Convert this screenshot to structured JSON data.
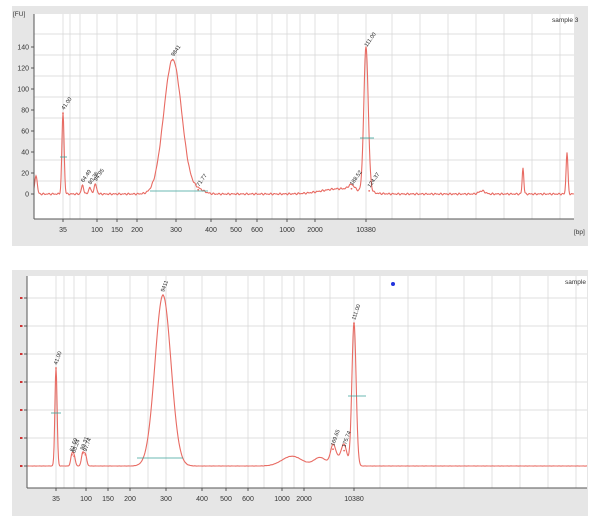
{
  "chart_data": [
    {
      "type": "line",
      "title": "sample 3",
      "ylabel": "[FU]",
      "xlabel": "[bp]",
      "ylim": [
        -10,
        145
      ],
      "y_ticks": [
        "0",
        "20",
        "40",
        "60",
        "80",
        "100",
        "120",
        "140"
      ],
      "x_ticks": [
        "35",
        "100",
        "150",
        "200",
        "300",
        "400",
        "500",
        "600",
        "1000",
        "2000",
        "10380"
      ],
      "grid": true,
      "series": [
        {
          "color": "#e86b63",
          "peaks": [
            {
              "label": "41.00",
              "size_bp": 35,
              "fu": 77,
              "color": "#3a9a3a"
            },
            {
              "label": "64.49",
              "size_bp": 64,
              "fu": 8,
              "color": "#222222"
            },
            {
              "label": "80.36",
              "size_bp": 80,
              "fu": 6,
              "color": "#222222"
            },
            {
              "label": "94.95",
              "size_bp": 95,
              "fu": 9,
              "color": "#222222"
            },
            {
              "label": "9841",
              "size_bp": 290,
              "fu": 128,
              "color": "#222222"
            },
            {
              "label": "71.77",
              "size_bp": 360,
              "fu": 4,
              "color": "#222222"
            },
            {
              "label": "188.52",
              "size_bp": 6500,
              "fu": 5,
              "color": "#222222"
            },
            {
              "label": "111.00",
              "size_bp": 10380,
              "fu": 137,
              "color": "#7a3fbf"
            },
            {
              "label": "124.37",
              "size_bp": 11500,
              "fu": 3,
              "color": "#222222"
            }
          ]
        }
      ]
    },
    {
      "type": "line",
      "title": "sample",
      "ylim": [
        0,
        7
      ],
      "x_ticks": [
        "35",
        "100",
        "150",
        "200",
        "300",
        "400",
        "500",
        "600",
        "1000",
        "2000",
        "10380"
      ],
      "grid": true,
      "series": [
        {
          "color": "#e86b63",
          "peaks": [
            {
              "label": "41.00",
              "size_bp": 35,
              "fu": 3.5,
              "color": "#3a9a3a"
            },
            {
              "label": "61.59",
              "size_bp": 61,
              "fu": 0.4,
              "color": "#222222"
            },
            {
              "label": "65.24",
              "size_bp": 66,
              "fu": 0.35,
              "color": "#222222"
            },
            {
              "label": "89.31",
              "size_bp": 89,
              "fu": 0.45,
              "color": "#222222"
            },
            {
              "label": "97.74",
              "size_bp": 98,
              "fu": 0.4,
              "color": "#222222"
            },
            {
              "label": "9411",
              "size_bp": 290,
              "fu": 6.1,
              "color": "#222222"
            },
            {
              "label": "169.65",
              "size_bp": 5200,
              "fu": 0.6,
              "color": "#222222"
            },
            {
              "label": "175.74",
              "size_bp": 7500,
              "fu": 0.55,
              "color": "#222222"
            },
            {
              "label": "111.00",
              "size_bp": 10380,
              "fu": 5.1,
              "color": "#7a3fbf"
            }
          ]
        }
      ]
    }
  ]
}
